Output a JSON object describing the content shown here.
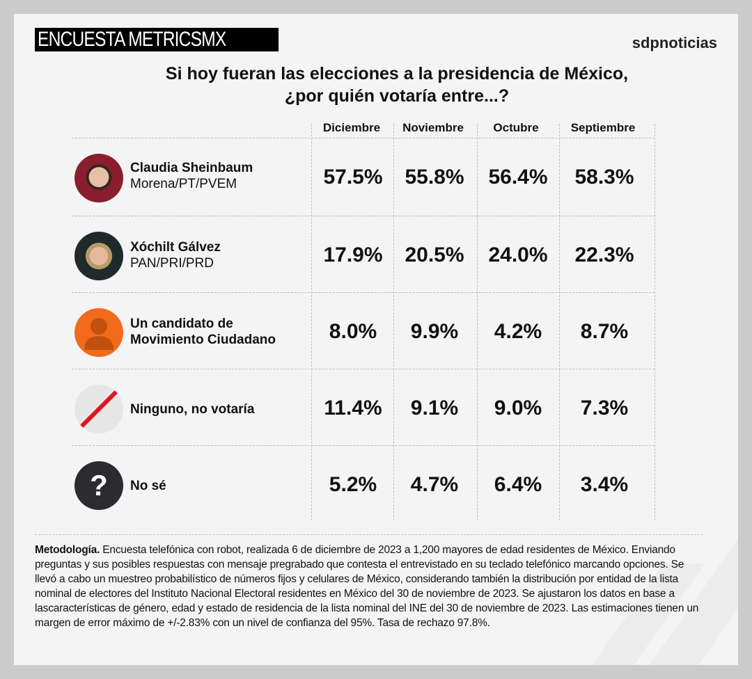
{
  "header": {
    "badge": "ENCUESTA METRICSMX",
    "brand": "sdpnoticias",
    "title_line1": "Si hoy fueran las elecciones a la presidencia de México,",
    "title_line2": "¿por quién votaría entre...?"
  },
  "columns": [
    "Diciembre",
    "Noviembre",
    "Octubre",
    "Septiembre"
  ],
  "rows": [
    {
      "name": "Claudia Sheinbaum",
      "party": "Morena/PT/PVEM",
      "icon": "candidate-photo",
      "values": [
        "57.5%",
        "55.8%",
        "56.4%",
        "58.3%"
      ]
    },
    {
      "name": "Xóchilt Gálvez",
      "party": "PAN/PRI/PRD",
      "icon": "candidate-photo",
      "values": [
        "17.9%",
        "20.5%",
        "24.0%",
        "22.3%"
      ]
    },
    {
      "name": "Un candidato de",
      "name2": "Movimiento Ciudadano",
      "icon": "person-icon",
      "values": [
        "8.0%",
        "9.9%",
        "4.2%",
        "8.7%"
      ]
    },
    {
      "name": "Ninguno, no votaría",
      "icon": "slash-icon",
      "values": [
        "11.4%",
        "9.1%",
        "9.0%",
        "7.3%"
      ]
    },
    {
      "name": "No sé",
      "icon": "question-icon",
      "values": [
        "5.2%",
        "4.7%",
        "6.4%",
        "3.4%"
      ]
    }
  ],
  "footnote": {
    "label": "Metodología.",
    "text": " Encuesta telefónica con robot, realizada 6 de diciembre de 2023 a 1,200 mayores de edad residentes de México. Enviando preguntas y sus posibles respuestas con mensaje pregrabado que contesta el entrevistado en su teclado telefónico marcando opciones. Se llevó a cabo un muestreo probabilístico de números fijos y celulares de México, considerando también la distribución por entidad de la lista nominal de electores del Instituto Nacional Electoral residentes en México del 30 de noviembre de 2023. Se ajustaron los datos en base a lascaracterísticas de género, edad y estado de residencia de la lista nominal del INE del 30 de noviembre de 2023. Las estimaciones tienen un margen de error máximo de +/-2.83% con un nivel de confianza del 95%. Tasa de rechazo 97.8%."
  },
  "colors": {
    "mc_orange": "#f26a1b",
    "slash_red": "#e0141e",
    "question_dark": "#2c2b30",
    "sheinbaum_bg": "#8a1e2e"
  },
  "chart_data": {
    "type": "table",
    "title": "Si hoy fueran las elecciones a la presidencia de México, ¿por quién votaría entre...?",
    "categories": [
      "Diciembre",
      "Noviembre",
      "Octubre",
      "Septiembre"
    ],
    "series": [
      {
        "name": "Claudia Sheinbaum",
        "values": [
          57.5,
          55.8,
          56.4,
          58.3
        ]
      },
      {
        "name": "Xóchilt Gálvez",
        "values": [
          17.9,
          20.5,
          24.0,
          22.3
        ]
      },
      {
        "name": "Un candidato de Movimiento Ciudadano",
        "values": [
          8.0,
          9.9,
          4.2,
          8.7
        ]
      },
      {
        "name": "Ninguno, no votaría",
        "values": [
          11.4,
          9.1,
          9.0,
          7.3
        ]
      },
      {
        "name": "No sé",
        "values": [
          5.2,
          4.7,
          6.4,
          3.4
        ]
      }
    ]
  }
}
